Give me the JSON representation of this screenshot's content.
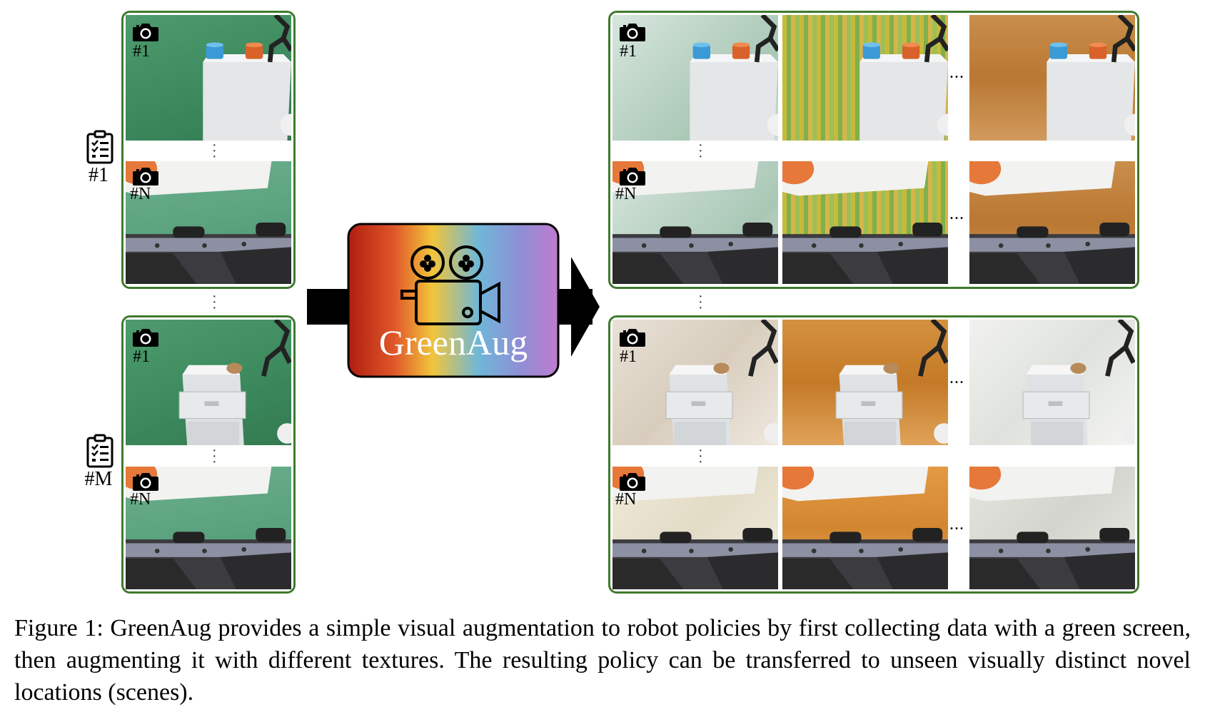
{
  "labels": {
    "cam1": "#1",
    "camN": "#N",
    "task1": "#1",
    "taskM": "#M",
    "ellipsis": "..."
  },
  "center_box": {
    "title": "GreenAug",
    "icon": "movie-camera-icon"
  },
  "caption": "Figure 1: GreenAug provides a simple visual augmentation to robot policies by first collecting data with a green screen, then augmenting it with different textures. The resulting policy can be transferred to unseen visually distinct novel locations (scenes).",
  "colors": {
    "group_border": "#3f7a2e",
    "gradient": [
      "#b01e10",
      "#e0572a",
      "#f2c53a",
      "#6fb7d8",
      "#8f8ed6",
      "#c07bd0"
    ]
  }
}
